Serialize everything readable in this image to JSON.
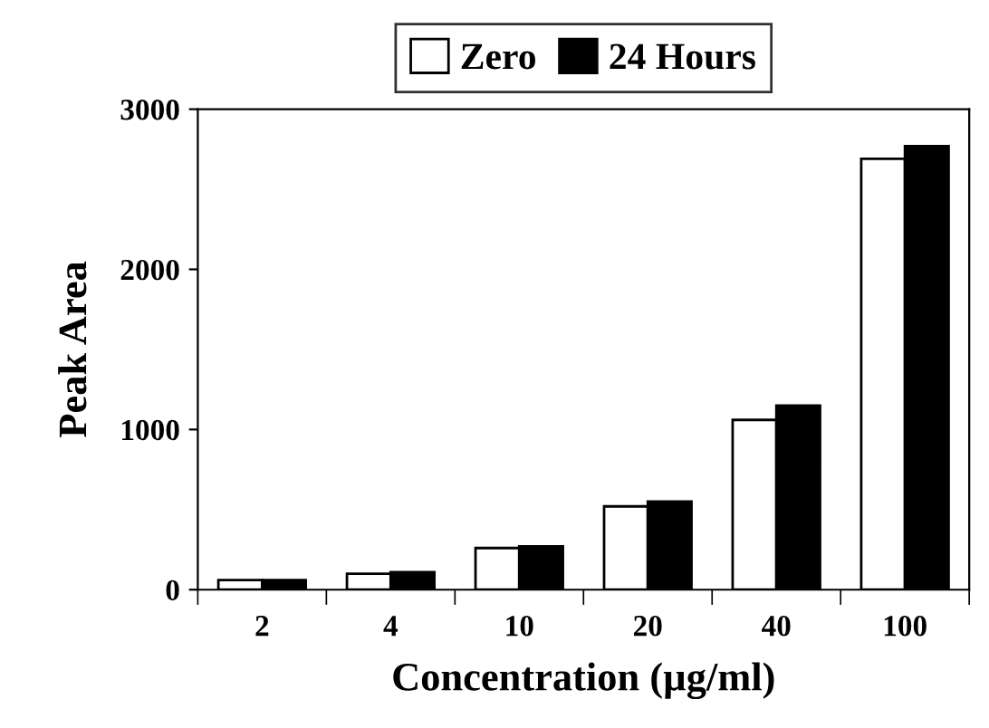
{
  "chart_data": {
    "type": "bar",
    "xlabel": "Concentration (µg/ml)",
    "ylabel": "Peak Area",
    "categories": [
      "2",
      "4",
      "10",
      "20",
      "40",
      "100"
    ],
    "series": [
      {
        "name": "Zero",
        "color": "#ffffff",
        "values": [
          60,
          100,
          260,
          520,
          1060,
          2690
        ]
      },
      {
        "name": "24 Hours",
        "color": "#000000",
        "values": [
          60,
          110,
          270,
          550,
          1150,
          2770
        ]
      }
    ],
    "ylim": [
      0,
      3000
    ],
    "yticks": [
      0,
      1000,
      2000,
      3000
    ],
    "grid": false,
    "legend": "top"
  }
}
